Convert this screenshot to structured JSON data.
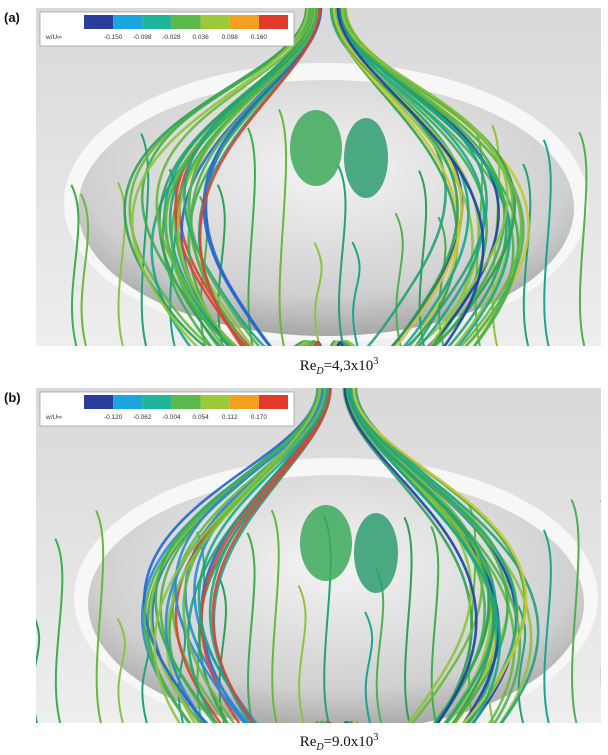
{
  "panels": [
    {
      "label": "(a)",
      "colorbar": {
        "title": "w/U∞",
        "ticks": [
          "-0.150",
          "-0.098",
          "-0.028",
          "0.036",
          "0.098",
          "0.160"
        ]
      },
      "caption": {
        "base": "Re",
        "subscript": "D",
        "text": "=4,3x10",
        "superscript": "3"
      }
    },
    {
      "label": "(b)",
      "colorbar": {
        "title": "w/U∞",
        "ticks": [
          "-0.120",
          "-0.062",
          "-0.004",
          "0.054",
          "0.112",
          "0.170"
        ]
      },
      "caption": {
        "base": "Re",
        "subscript": "D",
        "text": "=9.0x10",
        "superscript": "3"
      }
    }
  ]
}
